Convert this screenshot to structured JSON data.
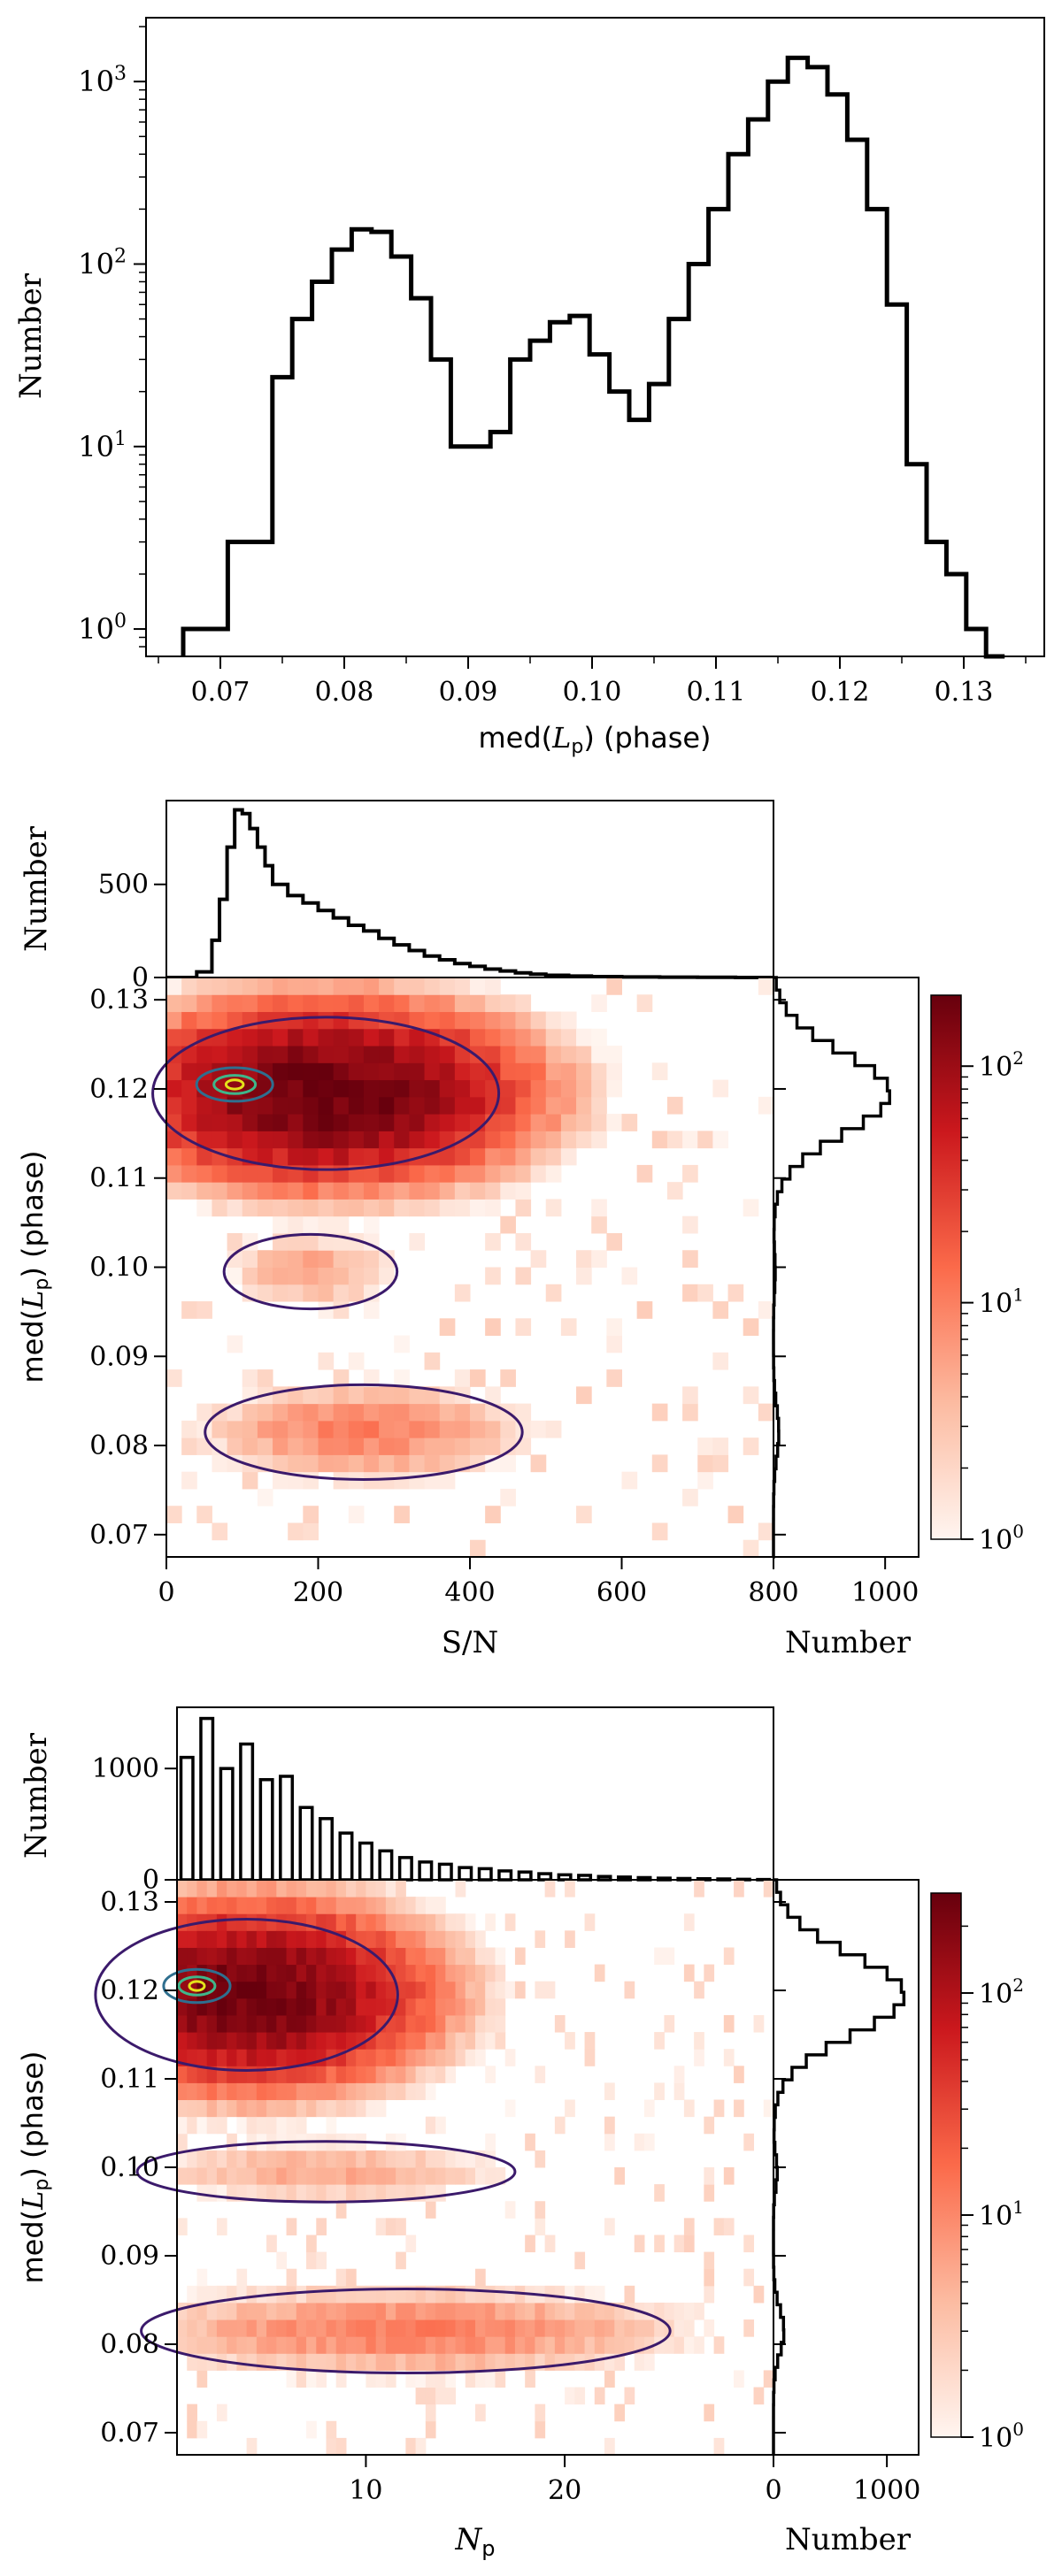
{
  "figure": {
    "panels_label": "Three-panel figure of med(Lp) (phase) distributions",
    "colors": {
      "hist_line": "#000000",
      "contour_levels": [
        "#3b1a6b",
        "#2f6f8f",
        "#3fb68a",
        "#e4e11a"
      ],
      "cmap_low": "#fff5f0",
      "cmap_mid": "#fb6a4a",
      "cmap_high": "#67000d"
    }
  },
  "chart_data": [
    {
      "type": "histogram",
      "title": "",
      "xlabel_pre": "med(",
      "xlabel_sym": "L",
      "xlabel_sub": "p",
      "xlabel_post": ") (phase)",
      "ylabel": "Number",
      "xlim": [
        0.064,
        0.1365
      ],
      "ylim_log10": [
        -0.15,
        3.35
      ],
      "yscale": "log",
      "xticks": [
        "0.07",
        "0.08",
        "0.09",
        "0.10",
        "0.11",
        "0.12",
        "0.13"
      ],
      "yticks": [
        {
          "base": "10",
          "exp": "0"
        },
        {
          "base": "10",
          "exp": "1"
        },
        {
          "base": "10",
          "exp": "2"
        },
        {
          "base": "10",
          "exp": "3"
        }
      ],
      "bin_edges": [
        0.067,
        0.0706,
        0.0742,
        0.0758,
        0.0774,
        0.079,
        0.0806,
        0.0822,
        0.0838,
        0.0854,
        0.087,
        0.0886,
        0.0902,
        0.0918,
        0.0934,
        0.095,
        0.0966,
        0.0982,
        0.0998,
        0.1014,
        0.103,
        0.1046,
        0.1062,
        0.1078,
        0.1094,
        0.111,
        0.1126,
        0.1142,
        0.1158,
        0.1174,
        0.119,
        0.1206,
        0.1222,
        0.1238,
        0.1254,
        0.127,
        0.1286,
        0.1302,
        0.1318,
        0.1333
      ],
      "counts": [
        1,
        3,
        24,
        50,
        80,
        120,
        155,
        150,
        110,
        65,
        30,
        10,
        10,
        12,
        30,
        38,
        48,
        52,
        32,
        20,
        14,
        22,
        50,
        100,
        200,
        400,
        620,
        1000,
        1350,
        1200,
        850,
        480,
        200,
        60,
        8,
        3,
        2,
        1,
        0.6
      ]
    },
    {
      "type": "heatmap",
      "title": "",
      "xlabel": "S/N",
      "ylabel_pre": "med(",
      "ylabel_sym": "L",
      "ylabel_sub": "p",
      "ylabel_post": ") (phase)",
      "xlim": [
        0,
        800
      ],
      "ylim": [
        0.0675,
        0.1325
      ],
      "xticks": [
        "0",
        "200",
        "400",
        "600",
        "800"
      ],
      "yticks": [
        "0.07",
        "0.08",
        "0.09",
        "0.10",
        "0.11",
        "0.12",
        "0.13"
      ],
      "colorbar_ticks": [
        {
          "base": "10",
          "exp": "0"
        },
        {
          "base": "10",
          "exp": "1"
        },
        {
          "base": "10",
          "exp": "2"
        }
      ],
      "colorbar_range_log10": [
        0,
        2.3
      ],
      "top_hist": {
        "ylabel": "Number",
        "yticks": [
          "0",
          "500"
        ],
        "ylim": [
          0,
          950
        ],
        "bin_edges": [
          0,
          40,
          60,
          70,
          80,
          90,
          100,
          110,
          120,
          130,
          140,
          160,
          180,
          200,
          220,
          240,
          260,
          280,
          300,
          320,
          340,
          360,
          380,
          400,
          420,
          440,
          460,
          480,
          500,
          530,
          560,
          600,
          650,
          700,
          750,
          800
        ],
        "counts": [
          0,
          30,
          200,
          420,
          700,
          900,
          880,
          800,
          700,
          600,
          500,
          440,
          400,
          360,
          320,
          280,
          250,
          210,
          175,
          145,
          115,
          95,
          75,
          60,
          45,
          35,
          25,
          18,
          12,
          8,
          5,
          3,
          2,
          1,
          0
        ]
      },
      "right_hist": {
        "xlabel": "Number",
        "xticks": [
          "0",
          "1000"
        ],
        "xlim": [
          0,
          1300
        ],
        "shape": "marginal of med(Lp)"
      },
      "clusters": [
        {
          "center": [
            210,
            0.1195
          ],
          "spread": [
            120,
            0.0045
          ],
          "peak": 200
        },
        {
          "center": [
            190,
            0.0995
          ],
          "spread": [
            60,
            0.0022
          ],
          "peak": 6
        },
        {
          "center": [
            260,
            0.0815
          ],
          "spread": [
            110,
            0.0028
          ],
          "peak": 10
        }
      ]
    },
    {
      "type": "heatmap",
      "title": "",
      "xlabel_sym": "N",
      "xlabel_sub": "p",
      "ylabel_pre": "med(",
      "ylabel_sym": "L",
      "ylabel_sub": "p",
      "ylabel_post": ") (phase)",
      "xlim": [
        0.5,
        30.5
      ],
      "ylim": [
        0.0675,
        0.1325
      ],
      "xticks": [
        "10",
        "20"
      ],
      "yticks": [
        "0.07",
        "0.08",
        "0.09",
        "0.10",
        "0.11",
        "0.12",
        "0.13"
      ],
      "colorbar_ticks": [
        {
          "base": "10",
          "exp": "0"
        },
        {
          "base": "10",
          "exp": "1"
        },
        {
          "base": "10",
          "exp": "2"
        }
      ],
      "colorbar_range_log10": [
        0,
        2.45
      ],
      "top_hist": {
        "ylabel": "Number",
        "yticks": [
          "0",
          "1000"
        ],
        "ylim": [
          0,
          1550
        ],
        "values_Np": [
          1,
          2,
          3,
          4,
          5,
          6,
          7,
          8,
          9,
          10,
          11,
          12,
          13,
          14,
          15,
          16,
          17,
          18,
          19,
          20,
          21,
          22,
          23,
          24,
          25,
          26,
          27,
          28,
          29,
          30
        ],
        "counts": [
          1100,
          1450,
          1000,
          1220,
          900,
          930,
          650,
          550,
          420,
          330,
          260,
          200,
          160,
          140,
          110,
          100,
          80,
          70,
          55,
          45,
          40,
          30,
          25,
          20,
          15,
          12,
          10,
          8,
          5,
          3
        ]
      },
      "right_hist": {
        "xlabel": "Number",
        "xticks": [
          "0",
          "1000"
        ],
        "xlim": [
          0,
          1280
        ],
        "shape": "marginal of med(Lp)"
      },
      "clusters": [
        {
          "center": [
            4,
            0.1195
          ],
          "spread": [
            4,
            0.0045
          ],
          "peak": 260
        },
        {
          "center": [
            8,
            0.0995
          ],
          "spread": [
            5,
            0.0018
          ],
          "peak": 6
        },
        {
          "center": [
            12,
            0.0815
          ],
          "spread": [
            7,
            0.0025
          ],
          "peak": 12
        }
      ]
    }
  ]
}
